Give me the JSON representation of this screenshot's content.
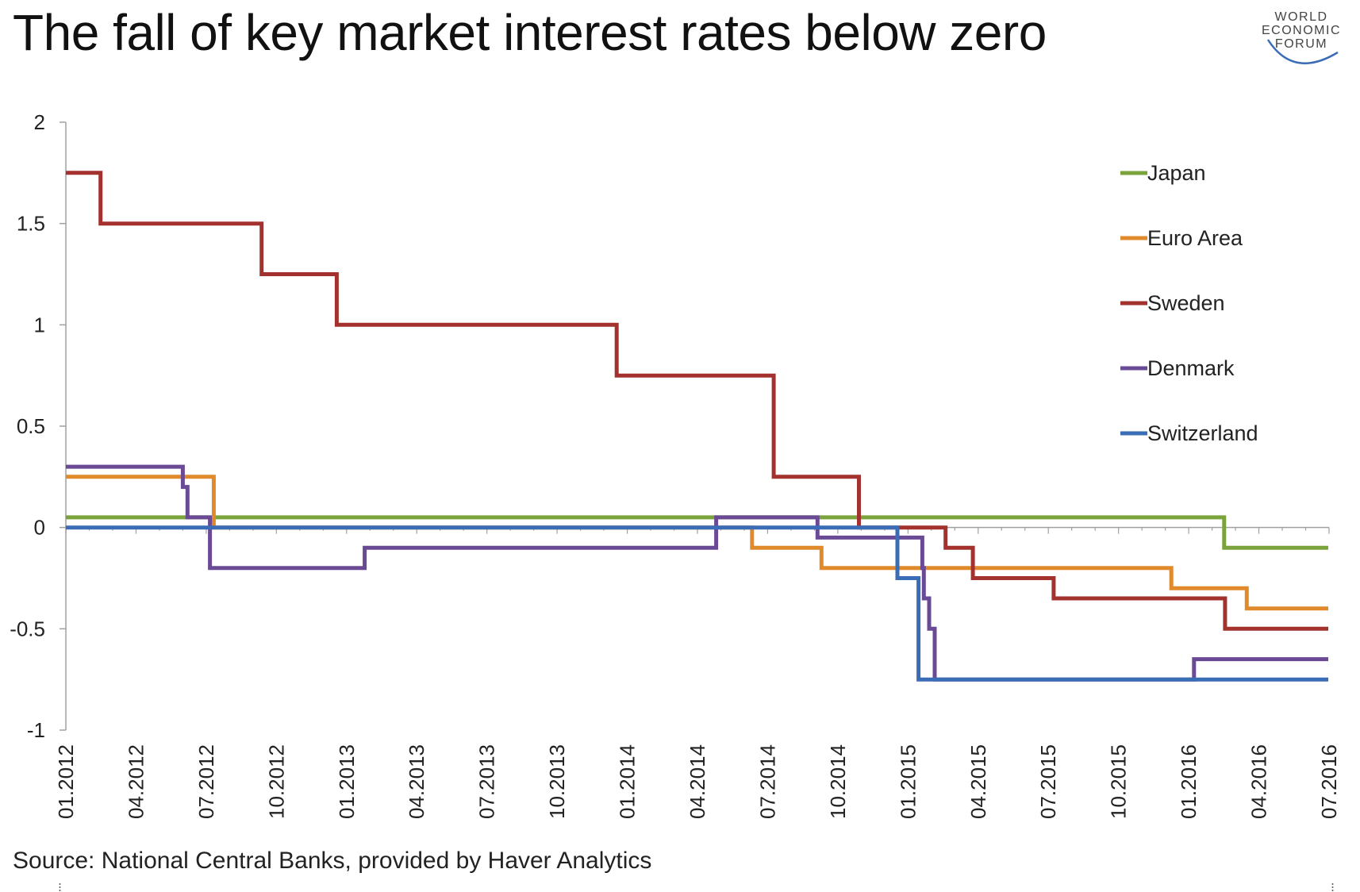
{
  "title": "The fall of key market interest rates below zero",
  "source": "Source: National Central Banks, provided by Haver Analytics",
  "logo": {
    "line1": "WORLD",
    "line2": "ECONOMIC",
    "line3": "FORUM",
    "icon": "world-economic-forum-logo"
  },
  "colors": {
    "Japan": "#7aa33c",
    "Euro Area": "#e08a2c",
    "Sweden": "#a3322e",
    "Denmark": "#6a4a95",
    "Switzerland": "#3a6db5",
    "axis": "#a0a0a0"
  },
  "chart_data": {
    "type": "line",
    "step": true,
    "title": "The fall of key market interest rates below zero",
    "xlabel": "",
    "ylabel": "",
    "ylim": [
      -1,
      2
    ],
    "yticks": [
      "2",
      "1.5",
      "1",
      "0.5",
      "0",
      "-0.5",
      "-1"
    ],
    "xlim": [
      "2012-01",
      "2016-07"
    ],
    "xticks": [
      "01.2012",
      "04.2012",
      "07.2012",
      "10.2012",
      "01.2013",
      "04.2013",
      "07.2013",
      "10.2013",
      "01.2014",
      "04.2014",
      "07.2014",
      "10.2014",
      "01.2015",
      "04.2015",
      "07.2015",
      "10.2015",
      "01.2016",
      "04.2016",
      "07.2016"
    ],
    "grid": false,
    "legend_position": "top-right",
    "series": [
      {
        "name": "Japan",
        "points": [
          [
            "2012-01-01",
            0.05
          ],
          [
            "2016-02-16",
            -0.1
          ],
          [
            "2016-06-30",
            -0.1
          ]
        ]
      },
      {
        "name": "Euro Area",
        "points": [
          [
            "2012-01-01",
            0.25
          ],
          [
            "2012-07-11",
            0.0
          ],
          [
            "2014-06-11",
            -0.1
          ],
          [
            "2014-09-10",
            -0.2
          ],
          [
            "2015-12-09",
            -0.3
          ],
          [
            "2016-03-16",
            -0.4
          ],
          [
            "2016-06-30",
            -0.4
          ]
        ]
      },
      {
        "name": "Sweden",
        "points": [
          [
            "2012-01-01",
            1.75
          ],
          [
            "2012-02-15",
            1.5
          ],
          [
            "2012-09-12",
            1.25
          ],
          [
            "2012-12-19",
            1.0
          ],
          [
            "2013-12-18",
            0.75
          ],
          [
            "2014-07-09",
            0.25
          ],
          [
            "2014-10-29",
            0.0
          ],
          [
            "2015-02-18",
            -0.1
          ],
          [
            "2015-03-25",
            -0.25
          ],
          [
            "2015-07-08",
            -0.35
          ],
          [
            "2016-02-17",
            -0.5
          ],
          [
            "2016-06-30",
            -0.5
          ]
        ]
      },
      {
        "name": "Denmark",
        "points": [
          [
            "2012-01-01",
            0.3
          ],
          [
            "2012-06-01",
            0.2
          ],
          [
            "2012-06-07",
            0.05
          ],
          [
            "2012-07-06",
            -0.2
          ],
          [
            "2013-01-25",
            -0.1
          ],
          [
            "2014-04-25",
            0.05
          ],
          [
            "2014-09-05",
            -0.05
          ],
          [
            "2015-01-20",
            -0.2
          ],
          [
            "2015-01-22",
            -0.35
          ],
          [
            "2015-01-29",
            -0.5
          ],
          [
            "2015-02-05",
            -0.75
          ],
          [
            "2016-01-08",
            -0.65
          ],
          [
            "2016-06-30",
            -0.65
          ]
        ]
      },
      {
        "name": "Switzerland",
        "points": [
          [
            "2012-01-01",
            0.0
          ],
          [
            "2014-12-18",
            -0.25
          ],
          [
            "2015-01-15",
            -0.75
          ],
          [
            "2016-06-30",
            -0.75
          ]
        ]
      }
    ]
  }
}
